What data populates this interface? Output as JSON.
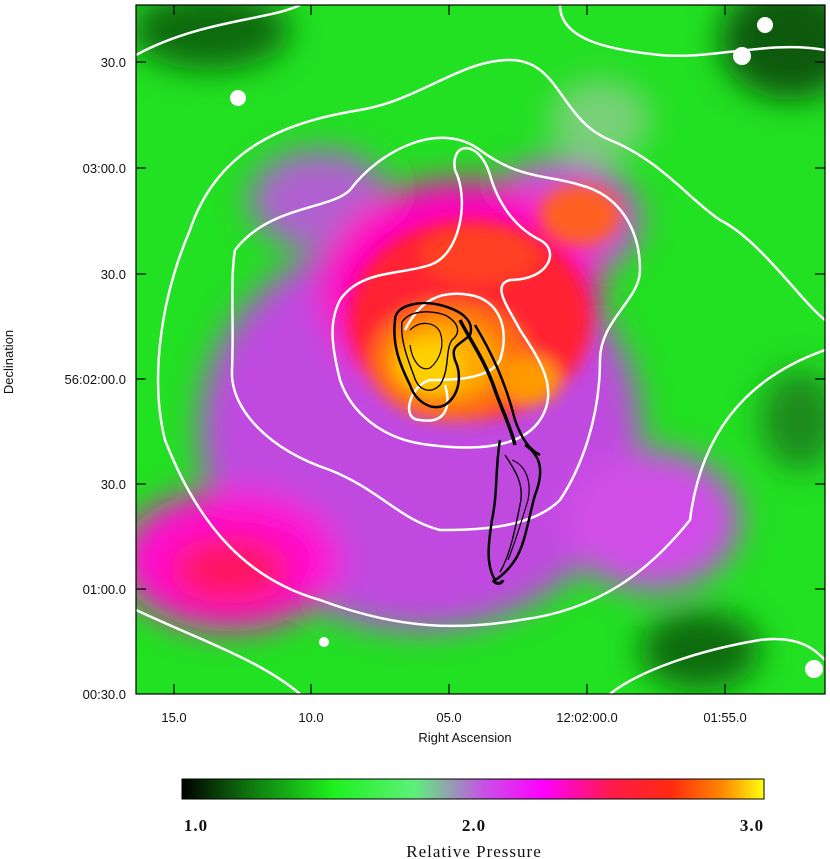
{
  "image": {
    "y_axis_label": "Declination",
    "x_axis_label": "Right Ascension",
    "y_ticks": [
      "30.0",
      "03:00.0",
      "30.0",
      "56:02:00.0",
      "30.0",
      "01:00.0",
      "00:30.0"
    ],
    "x_ticks": [
      "15.0",
      "10.0",
      "05.0",
      "12:02:00.0",
      "01:55.0"
    ]
  },
  "colorbar": {
    "title": "Relative Pressure",
    "min_label": "1.0",
    "mid_label": "2.0",
    "max_label": "3.0",
    "colors": [
      "#000000",
      "#0f7a0f",
      "#1ef01e",
      "#5ef07a",
      "#c850e6",
      "#ff00ff",
      "#ff1a4a",
      "#ff2a10",
      "#ff8a00",
      "#ffff10"
    ]
  }
}
